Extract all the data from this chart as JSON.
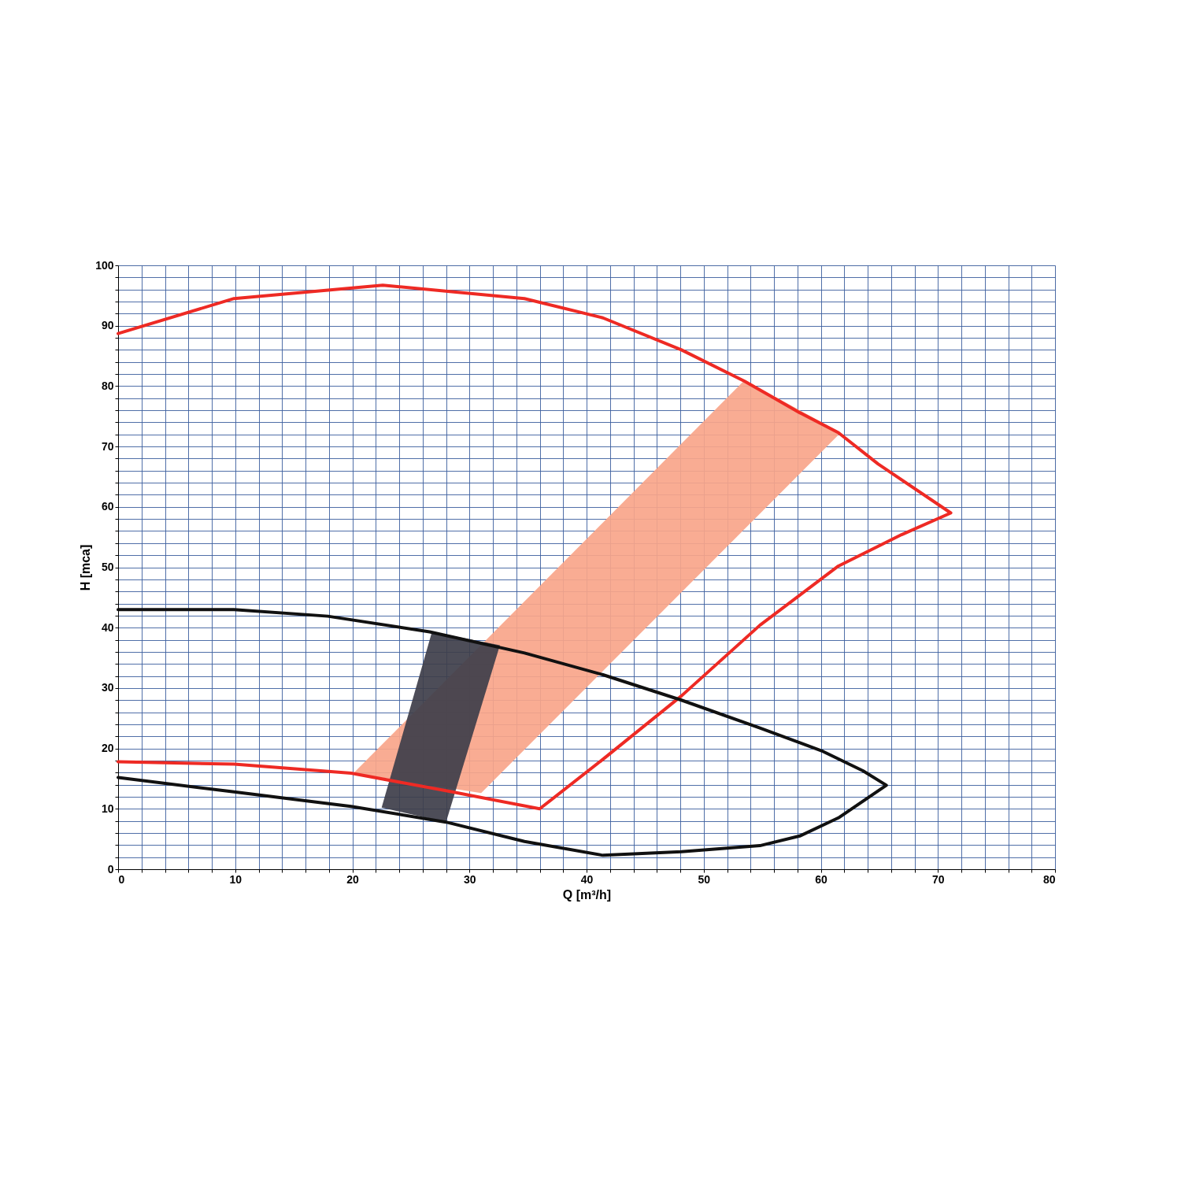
{
  "chart_data": {
    "type": "line",
    "xlabel": "Q [m³/h]",
    "ylabel": "H [mca]",
    "xlim": [
      0,
      80
    ],
    "ylim": [
      0,
      100
    ],
    "xticks": [
      0,
      {
        "value": 2,
        "label": null
      },
      {
        "value": 4,
        "label": null
      },
      {
        "value": 6,
        "label": null
      },
      {
        "value": 8,
        "label": null
      },
      10,
      {
        "value": 12,
        "label": null
      },
      {
        "value": 14,
        "label": null
      },
      {
        "value": 16,
        "label": null
      },
      {
        "value": 18,
        "label": null
      },
      20,
      {
        "value": 22,
        "label": null
      },
      {
        "value": 24,
        "label": null
      },
      {
        "value": 26,
        "label": null
      },
      {
        "value": 28,
        "label": null
      },
      30,
      {
        "value": 32,
        "label": null
      },
      {
        "value": 34,
        "label": null
      },
      {
        "value": 36,
        "label": null
      },
      {
        "value": 38,
        "label": null
      },
      40,
      {
        "value": 42,
        "label": null
      },
      {
        "value": 44,
        "label": null
      },
      {
        "value": 46,
        "label": null
      },
      {
        "value": 48,
        "label": null
      },
      50,
      {
        "value": 52,
        "label": null
      },
      {
        "value": 54,
        "label": null
      },
      {
        "value": 56,
        "label": null
      },
      {
        "value": 58,
        "label": null
      },
      60,
      {
        "value": 62,
        "label": null
      },
      {
        "value": 64,
        "label": null
      },
      {
        "value": 66,
        "label": null
      },
      {
        "value": 68,
        "label": null
      },
      70,
      {
        "value": 72,
        "label": null
      },
      {
        "value": 74,
        "label": null
      },
      {
        "value": 76,
        "label": null
      },
      {
        "value": 78,
        "label": null
      },
      80
    ],
    "yticks": [
      0,
      {
        "value": 2,
        "label": null
      },
      {
        "value": 4,
        "label": null
      },
      {
        "value": 6,
        "label": null
      },
      {
        "value": 8,
        "label": null
      },
      10,
      {
        "value": 12,
        "label": null
      },
      {
        "value": 14,
        "label": null
      },
      {
        "value": 16,
        "label": null
      },
      {
        "value": 18,
        "label": null
      },
      20,
      {
        "value": 22,
        "label": null
      },
      {
        "value": 24,
        "label": null
      },
      {
        "value": 26,
        "label": null
      },
      {
        "value": 28,
        "label": null
      },
      30,
      {
        "value": 32,
        "label": null
      },
      {
        "value": 34,
        "label": null
      },
      {
        "value": 36,
        "label": null
      },
      {
        "value": 38,
        "label": null
      },
      40,
      {
        "value": 42,
        "label": null
      },
      {
        "value": 44,
        "label": null
      },
      {
        "value": 46,
        "label": null
      },
      {
        "value": 48,
        "label": null
      },
      50,
      {
        "value": 52,
        "label": null
      },
      {
        "value": 54,
        "label": null
      },
      {
        "value": 56,
        "label": null
      },
      {
        "value": 58,
        "label": null
      },
      60,
      {
        "value": 62,
        "label": null
      },
      {
        "value": 64,
        "label": null
      },
      {
        "value": 66,
        "label": null
      },
      {
        "value": 68,
        "label": null
      },
      70,
      {
        "value": 72,
        "label": null
      },
      {
        "value": 74,
        "label": null
      },
      {
        "value": 76,
        "label": null
      },
      {
        "value": 78,
        "label": null
      },
      80,
      {
        "value": 82,
        "label": null
      },
      {
        "value": 84,
        "label": null
      },
      {
        "value": 86,
        "label": null
      },
      {
        "value": 88,
        "label": null
      },
      90,
      {
        "value": 92,
        "label": null
      },
      {
        "value": 94,
        "label": null
      },
      {
        "value": 96,
        "label": null
      },
      {
        "value": 98,
        "label": null
      },
      100
    ],
    "grid": true,
    "series": [
      {
        "type": "area",
        "color": "#f9a58a",
        "x": [
          20.1,
          53.5,
          61.7,
          31
        ],
        "values": [
          15.9,
          81,
          72.3,
          12.6
        ]
      },
      {
        "type": "area",
        "color": "#3e3e4a",
        "x": [
          22.5,
          26.8,
          32.6,
          28
        ],
        "values": [
          10.2,
          39.3,
          37.1,
          7.8
        ]
      },
      {
        "color": "#ee2a24",
        "x": [
          0,
          9.9,
          22.6,
          34.7,
          41.4,
          48.1,
          53.5,
          58.2,
          61.5,
          64.9,
          71.1,
          66.9,
          61.5,
          54.8,
          48.1,
          41.4,
          36,
          28,
          19.9,
          9.9,
          0
        ],
        "values": [
          88.7,
          94.5,
          96.7,
          94.5,
          91.3,
          86,
          80.8,
          75.6,
          72.3,
          67.1,
          59,
          55.4,
          50.2,
          40.4,
          28.7,
          18.2,
          10,
          13,
          15.9,
          17.4,
          17.8
        ]
      },
      {
        "color": "#111111",
        "x": [
          0,
          9.9,
          17.9,
          26.6,
          34.7,
          41.4,
          48.1,
          54.8,
          60.2,
          63.6,
          65.6,
          61.5,
          58.2,
          54.8,
          48.1,
          41.4,
          34.7,
          28,
          19.9,
          9.9,
          0
        ],
        "values": [
          43,
          43,
          41.9,
          39.3,
          35.8,
          32.2,
          28,
          23.4,
          19.5,
          16.3,
          13.9,
          8.5,
          5.5,
          3.9,
          2.9,
          2.3,
          4.6,
          7.8,
          10.4,
          12.8,
          15.2
        ]
      }
    ]
  }
}
